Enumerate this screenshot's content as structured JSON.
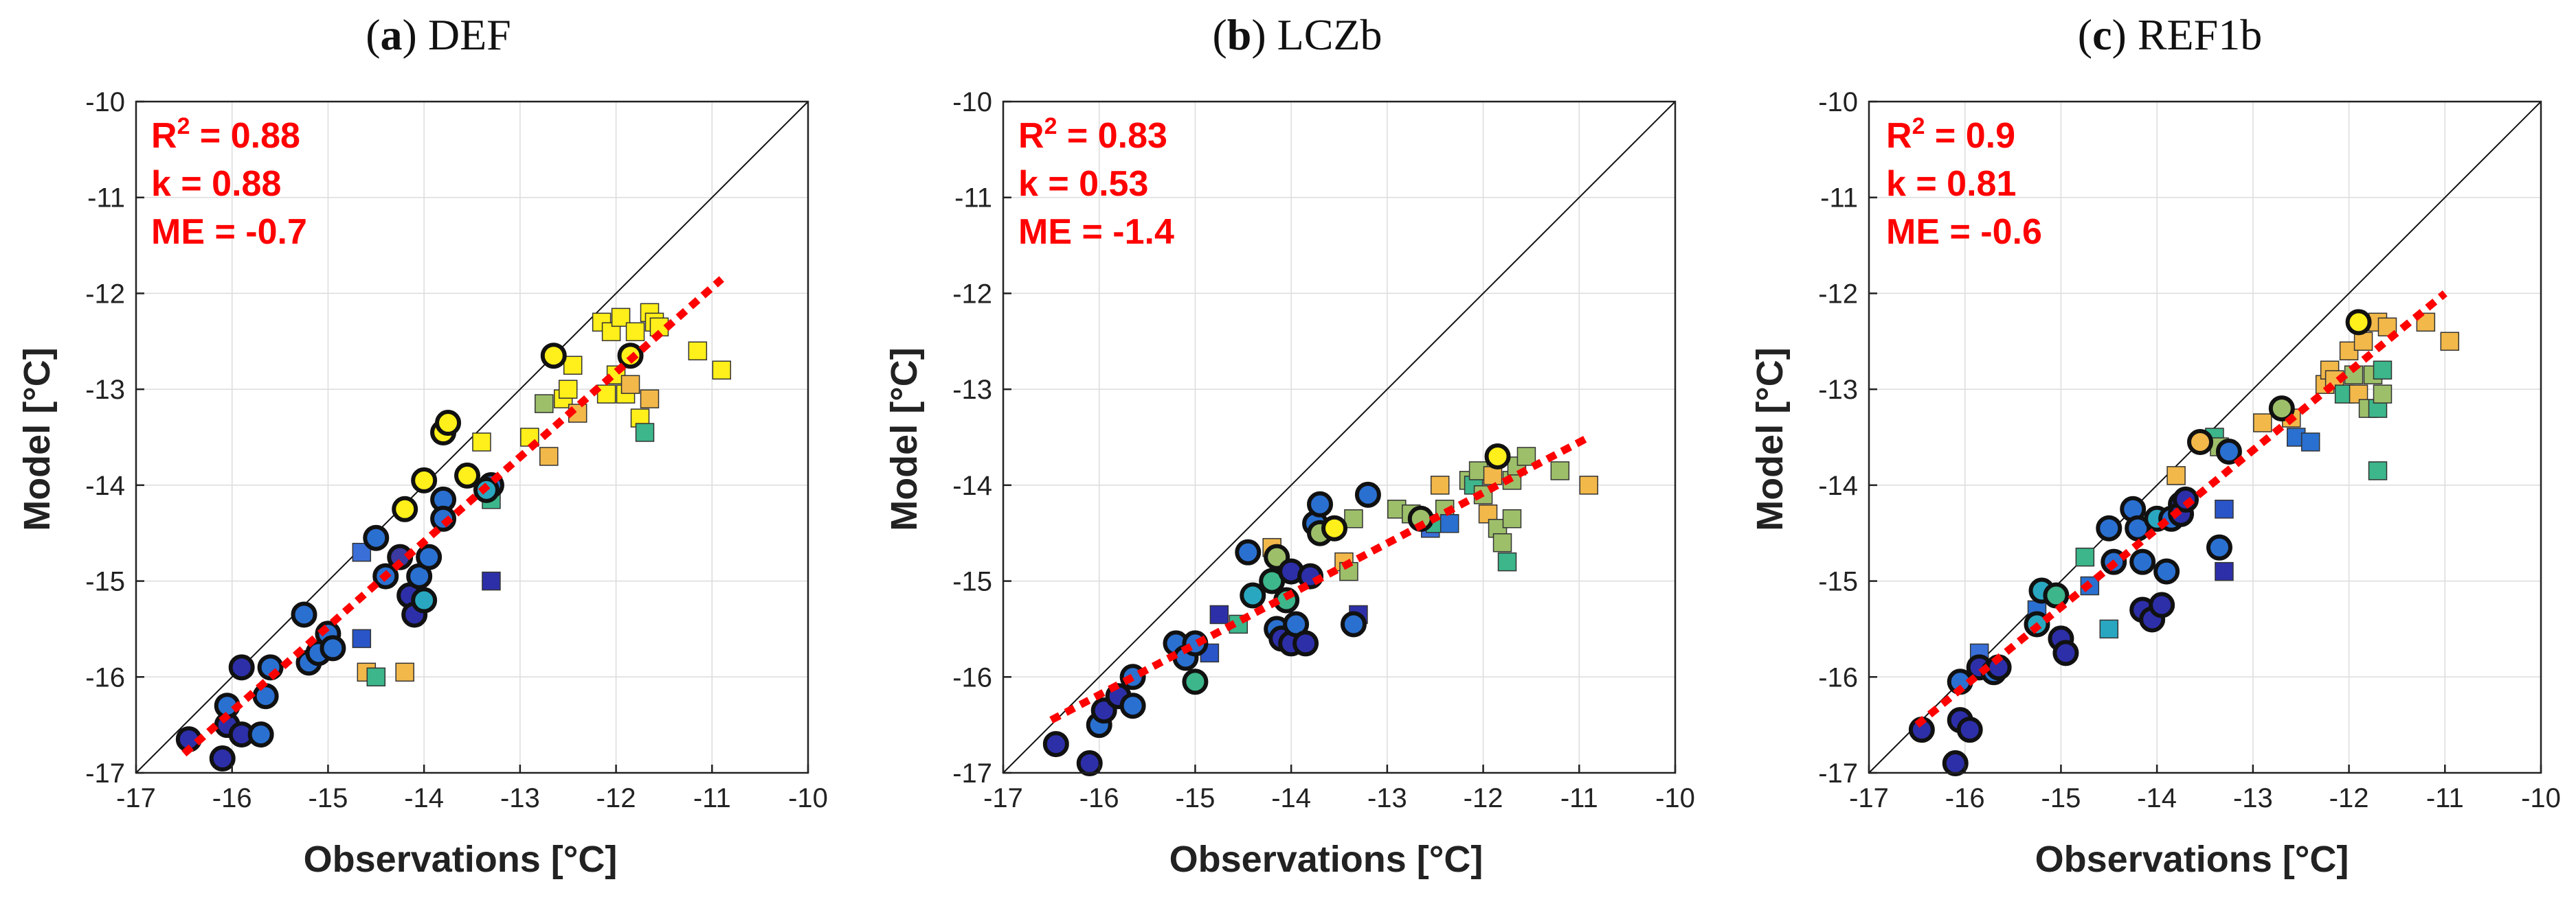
{
  "chart_data": [
    {
      "type": "scatter",
      "title_letter": "a",
      "title_name": "DEF",
      "xlabel": "Observations [°C]",
      "ylabel": "Model [°C]",
      "xlim": [
        -17,
        -10
      ],
      "ylim": [
        -17,
        -10
      ],
      "xticks": [
        "-17",
        "-16",
        "-15",
        "-14",
        "-13",
        "-12",
        "-11",
        "-10"
      ],
      "yticks": [
        "-17",
        "-16",
        "-15",
        "-14",
        "-13",
        "-12",
        "-11",
        "-10"
      ],
      "grid": true,
      "stats": {
        "r2_value": "0.88",
        "k_line": "k = 0.88",
        "me_line": "ME = -0.7"
      },
      "fit_line": {
        "x": [
          -16.5,
          -10.9
        ],
        "y": [
          -16.8,
          -11.85
        ]
      },
      "circles": [
        {
          "x": -16.45,
          "y": -16.65,
          "c": "#2d2fa8"
        },
        {
          "x": -16.1,
          "y": -16.85,
          "c": "#2d2fa8"
        },
        {
          "x": -16.05,
          "y": -16.5,
          "c": "#2d2fa8"
        },
        {
          "x": -16.05,
          "y": -16.3,
          "c": "#2a70d0"
        },
        {
          "x": -15.9,
          "y": -16.6,
          "c": "#2d2fa8"
        },
        {
          "x": -15.9,
          "y": -15.9,
          "c": "#2d2fa8"
        },
        {
          "x": -15.7,
          "y": -16.6,
          "c": "#2a70d0"
        },
        {
          "x": -15.65,
          "y": -16.2,
          "c": "#2a70d0"
        },
        {
          "x": -15.6,
          "y": -15.9,
          "c": "#2a70d0"
        },
        {
          "x": -15.25,
          "y": -15.35,
          "c": "#2a70d0"
        },
        {
          "x": -15.2,
          "y": -15.85,
          "c": "#2a70d0"
        },
        {
          "x": -15.1,
          "y": -15.75,
          "c": "#2a70d0"
        },
        {
          "x": -15.0,
          "y": -15.55,
          "c": "#2a70d0"
        },
        {
          "x": -14.95,
          "y": -15.7,
          "c": "#2a70d0"
        },
        {
          "x": -14.5,
          "y": -14.55,
          "c": "#2a70d0"
        },
        {
          "x": -14.4,
          "y": -14.95,
          "c": "#2a70d0"
        },
        {
          "x": -14.25,
          "y": -14.75,
          "c": "#3a3aa0"
        },
        {
          "x": -14.15,
          "y": -15.15,
          "c": "#2d2fa8"
        },
        {
          "x": -14.1,
          "y": -15.35,
          "c": "#2d2fa8"
        },
        {
          "x": -14.05,
          "y": -14.95,
          "c": "#2a70d0"
        },
        {
          "x": -14.0,
          "y": -15.2,
          "c": "#2aa7c0"
        },
        {
          "x": -13.95,
          "y": -14.75,
          "c": "#2a70d0"
        },
        {
          "x": -14.2,
          "y": -14.25,
          "c": "#ffef1a"
        },
        {
          "x": -14.0,
          "y": -13.95,
          "c": "#ffef1a"
        },
        {
          "x": -13.8,
          "y": -14.15,
          "c": "#2a70d0"
        },
        {
          "x": -13.8,
          "y": -14.35,
          "c": "#2a70d0"
        },
        {
          "x": -13.8,
          "y": -13.45,
          "c": "#ffef1a"
        },
        {
          "x": -13.75,
          "y": -13.35,
          "c": "#ffef1a"
        },
        {
          "x": -13.55,
          "y": -13.9,
          "c": "#ffef1a"
        },
        {
          "x": -13.3,
          "y": -14.0,
          "c": "#2a70d0"
        },
        {
          "x": -13.35,
          "y": -14.05,
          "c": "#2aa7c0"
        },
        {
          "x": -12.65,
          "y": -12.65,
          "c": "#ffef1a"
        },
        {
          "x": -11.85,
          "y": -12.65,
          "c": "#ffef1a"
        }
      ],
      "squares": [
        {
          "x": -14.65,
          "y": -14.7,
          "c": "#3a6fd8"
        },
        {
          "x": -14.65,
          "y": -15.6,
          "c": "#2a55c8"
        },
        {
          "x": -14.6,
          "y": -15.95,
          "c": "#f2b84a"
        },
        {
          "x": -14.5,
          "y": -16.0,
          "c": "#3cb68a"
        },
        {
          "x": -14.2,
          "y": -15.95,
          "c": "#f2b84a"
        },
        {
          "x": -13.3,
          "y": -15.0,
          "c": "#2d2fa8"
        },
        {
          "x": -13.4,
          "y": -13.55,
          "c": "#ffef1a"
        },
        {
          "x": -13.3,
          "y": -14.15,
          "c": "#3cb68a"
        },
        {
          "x": -12.9,
          "y": -13.5,
          "c": "#ffef1a"
        },
        {
          "x": -12.75,
          "y": -13.15,
          "c": "#9dbf6a"
        },
        {
          "x": -12.7,
          "y": -13.7,
          "c": "#f2b84a"
        },
        {
          "x": -12.55,
          "y": -13.1,
          "c": "#ffef1a"
        },
        {
          "x": -12.5,
          "y": -13.0,
          "c": "#ffef1a"
        },
        {
          "x": -12.45,
          "y": -12.75,
          "c": "#ffef1a"
        },
        {
          "x": -12.4,
          "y": -13.25,
          "c": "#f2b84a"
        },
        {
          "x": -12.15,
          "y": -12.3,
          "c": "#ffef1a"
        },
        {
          "x": -12.1,
          "y": -13.05,
          "c": "#ffef1a"
        },
        {
          "x": -12.05,
          "y": -12.4,
          "c": "#ffef1a"
        },
        {
          "x": -12.0,
          "y": -12.85,
          "c": "#ffef1a"
        },
        {
          "x": -11.95,
          "y": -12.25,
          "c": "#ffef1a"
        },
        {
          "x": -11.9,
          "y": -13.05,
          "c": "#ffef1a"
        },
        {
          "x": -11.85,
          "y": -12.95,
          "c": "#f2b84a"
        },
        {
          "x": -11.8,
          "y": -12.4,
          "c": "#ffef1a"
        },
        {
          "x": -11.75,
          "y": -13.3,
          "c": "#ffef1a"
        },
        {
          "x": -11.7,
          "y": -13.45,
          "c": "#3cb68a"
        },
        {
          "x": -11.65,
          "y": -12.2,
          "c": "#ffef1a"
        },
        {
          "x": -11.6,
          "y": -12.3,
          "c": "#ffef1a"
        },
        {
          "x": -11.65,
          "y": -13.1,
          "c": "#f2b84a"
        },
        {
          "x": -11.55,
          "y": -12.35,
          "c": "#ffef1a"
        },
        {
          "x": -11.15,
          "y": -12.6,
          "c": "#ffef1a"
        },
        {
          "x": -10.9,
          "y": -12.8,
          "c": "#ffef1a"
        }
      ]
    },
    {
      "type": "scatter",
      "title_letter": "b",
      "title_name": "LCZb",
      "xlabel": "Observations [°C]",
      "ylabel": "Model [°C]",
      "xlim": [
        -17,
        -10
      ],
      "ylim": [
        -17,
        -10
      ],
      "xticks": [
        "-17",
        "-16",
        "-15",
        "-14",
        "-13",
        "-12",
        "-11",
        "-10"
      ],
      "yticks": [
        "-17",
        "-16",
        "-15",
        "-14",
        "-13",
        "-12",
        "-11",
        "-10"
      ],
      "grid": true,
      "stats": {
        "r2_value": "0.83",
        "k_line": "k = 0.53",
        "me_line": "ME = -1.4"
      },
      "fit_line": {
        "x": [
          -16.5,
          -10.9
        ],
        "y": [
          -16.45,
          -13.5
        ]
      },
      "circles": [
        {
          "x": -16.45,
          "y": -16.7,
          "c": "#2d2fa8"
        },
        {
          "x": -16.1,
          "y": -16.9,
          "c": "#2d2fa8"
        },
        {
          "x": -16.0,
          "y": -16.5,
          "c": "#2a70d0"
        },
        {
          "x": -15.95,
          "y": -16.35,
          "c": "#2d2fa8"
        },
        {
          "x": -15.8,
          "y": -16.2,
          "c": "#2d2fa8"
        },
        {
          "x": -15.65,
          "y": -16.3,
          "c": "#2a70d0"
        },
        {
          "x": -15.65,
          "y": -16.0,
          "c": "#2a70d0"
        },
        {
          "x": -15.2,
          "y": -15.65,
          "c": "#2a70d0"
        },
        {
          "x": -15.1,
          "y": -15.8,
          "c": "#2a70d0"
        },
        {
          "x": -15.0,
          "y": -15.65,
          "c": "#2a70d0"
        },
        {
          "x": -15.0,
          "y": -16.05,
          "c": "#3cb68a"
        },
        {
          "x": -14.45,
          "y": -14.7,
          "c": "#2a70d0"
        },
        {
          "x": -14.4,
          "y": -15.15,
          "c": "#2aa7c0"
        },
        {
          "x": -14.2,
          "y": -15.0,
          "c": "#3cb68a"
        },
        {
          "x": -14.15,
          "y": -14.75,
          "c": "#9dbf6a"
        },
        {
          "x": -14.15,
          "y": -15.5,
          "c": "#2a70d0"
        },
        {
          "x": -14.1,
          "y": -15.6,
          "c": "#2d2fa8"
        },
        {
          "x": -14.05,
          "y": -15.2,
          "c": "#3cb68a"
        },
        {
          "x": -14.0,
          "y": -14.9,
          "c": "#2d2fa8"
        },
        {
          "x": -14.0,
          "y": -15.65,
          "c": "#2d2fa8"
        },
        {
          "x": -13.95,
          "y": -15.45,
          "c": "#2a70d0"
        },
        {
          "x": -13.85,
          "y": -15.65,
          "c": "#2d2fa8"
        },
        {
          "x": -13.8,
          "y": -14.95,
          "c": "#2d2fa8"
        },
        {
          "x": -13.75,
          "y": -14.4,
          "c": "#2a70d0"
        },
        {
          "x": -13.7,
          "y": -14.2,
          "c": "#2a70d0"
        },
        {
          "x": -13.7,
          "y": -14.5,
          "c": "#9dbf6a"
        },
        {
          "x": -13.55,
          "y": -14.45,
          "c": "#ffef1a"
        },
        {
          "x": -13.35,
          "y": -15.45,
          "c": "#2a70d0"
        },
        {
          "x": -13.2,
          "y": -14.1,
          "c": "#2a70d0"
        },
        {
          "x": -12.65,
          "y": -14.35,
          "c": "#9dbf6a"
        },
        {
          "x": -11.85,
          "y": -13.7,
          "c": "#ffef1a"
        }
      ],
      "squares": [
        {
          "x": -14.85,
          "y": -15.75,
          "c": "#2a55c8"
        },
        {
          "x": -14.75,
          "y": -15.35,
          "c": "#2d2fa8"
        },
        {
          "x": -14.55,
          "y": -15.45,
          "c": "#3cb68a"
        },
        {
          "x": -14.2,
          "y": -14.65,
          "c": "#f2b84a"
        },
        {
          "x": -13.45,
          "y": -14.8,
          "c": "#f2b84a"
        },
        {
          "x": -13.4,
          "y": -14.9,
          "c": "#9dbf6a"
        },
        {
          "x": -13.3,
          "y": -15.35,
          "c": "#2d2fa8"
        },
        {
          "x": -13.35,
          "y": -14.35,
          "c": "#9dbf6a"
        },
        {
          "x": -12.9,
          "y": -14.25,
          "c": "#9dbf6a"
        },
        {
          "x": -12.75,
          "y": -14.3,
          "c": "#9dbf6a"
        },
        {
          "x": -12.55,
          "y": -14.45,
          "c": "#3a6fd8"
        },
        {
          "x": -12.5,
          "y": -14.4,
          "c": "#3cb68a"
        },
        {
          "x": -12.45,
          "y": -14.0,
          "c": "#f2b84a"
        },
        {
          "x": -12.4,
          "y": -14.25,
          "c": "#9dbf6a"
        },
        {
          "x": -12.35,
          "y": -14.4,
          "c": "#2a70d0"
        },
        {
          "x": -12.15,
          "y": -13.95,
          "c": "#9dbf6a"
        },
        {
          "x": -12.1,
          "y": -14.0,
          "c": "#3cb68a"
        },
        {
          "x": -12.05,
          "y": -13.85,
          "c": "#9dbf6a"
        },
        {
          "x": -12.0,
          "y": -14.1,
          "c": "#9dbf6a"
        },
        {
          "x": -11.95,
          "y": -14.3,
          "c": "#f2b84a"
        },
        {
          "x": -11.9,
          "y": -13.9,
          "c": "#f2b84a"
        },
        {
          "x": -11.85,
          "y": -14.45,
          "c": "#9dbf6a"
        },
        {
          "x": -11.8,
          "y": -14.6,
          "c": "#9dbf6a"
        },
        {
          "x": -11.75,
          "y": -14.8,
          "c": "#3cb68a"
        },
        {
          "x": -11.7,
          "y": -14.35,
          "c": "#9dbf6a"
        },
        {
          "x": -11.7,
          "y": -13.95,
          "c": "#9dbf6a"
        },
        {
          "x": -11.65,
          "y": -13.8,
          "c": "#9dbf6a"
        },
        {
          "x": -11.55,
          "y": -13.7,
          "c": "#9dbf6a"
        },
        {
          "x": -11.2,
          "y": -13.85,
          "c": "#9dbf6a"
        },
        {
          "x": -10.9,
          "y": -14.0,
          "c": "#f2b84a"
        }
      ]
    },
    {
      "type": "scatter",
      "title_letter": "c",
      "title_name": "REF1b",
      "xlabel": "Observations [°C]",
      "ylabel": "Model [°C]",
      "xlim": [
        -17,
        -10
      ],
      "ylim": [
        -17,
        -10
      ],
      "xticks": [
        "-17",
        "-16",
        "-15",
        "-14",
        "-13",
        "-12",
        "-11",
        "-10"
      ],
      "yticks": [
        "-17",
        "-16",
        "-15",
        "-14",
        "-13",
        "-12",
        "-11",
        "-10"
      ],
      "grid": true,
      "stats": {
        "r2_value": "0.9",
        "k_line": "k = 0.81",
        "me_line": "ME = -0.6"
      },
      "fit_line": {
        "x": [
          -16.5,
          -11.0
        ],
        "y": [
          -16.5,
          -12.0
        ]
      },
      "circles": [
        {
          "x": -16.45,
          "y": -16.55,
          "c": "#2d2fa8"
        },
        {
          "x": -16.1,
          "y": -16.9,
          "c": "#2d2fa8"
        },
        {
          "x": -16.05,
          "y": -16.45,
          "c": "#2d2fa8"
        },
        {
          "x": -16.05,
          "y": -16.05,
          "c": "#2a70d0"
        },
        {
          "x": -15.95,
          "y": -16.55,
          "c": "#2d2fa8"
        },
        {
          "x": -15.85,
          "y": -15.9,
          "c": "#2d2fa8"
        },
        {
          "x": -15.7,
          "y": -15.95,
          "c": "#2a70d0"
        },
        {
          "x": -15.65,
          "y": -15.9,
          "c": "#2d2fa8"
        },
        {
          "x": -15.25,
          "y": -15.45,
          "c": "#2aa7c0"
        },
        {
          "x": -15.2,
          "y": -15.1,
          "c": "#2aa7c0"
        },
        {
          "x": -15.05,
          "y": -15.15,
          "c": "#3cb68a"
        },
        {
          "x": -15.0,
          "y": -15.6,
          "c": "#2d2fa8"
        },
        {
          "x": -14.95,
          "y": -15.75,
          "c": "#2d2fa8"
        },
        {
          "x": -14.5,
          "y": -14.45,
          "c": "#2a70d0"
        },
        {
          "x": -14.45,
          "y": -14.8,
          "c": "#2a70d0"
        },
        {
          "x": -14.25,
          "y": -14.25,
          "c": "#2a70d0"
        },
        {
          "x": -14.2,
          "y": -14.45,
          "c": "#2a70d0"
        },
        {
          "x": -14.15,
          "y": -14.8,
          "c": "#2a70d0"
        },
        {
          "x": -14.15,
          "y": -15.3,
          "c": "#2d2fa8"
        },
        {
          "x": -14.05,
          "y": -15.4,
          "c": "#2d2fa8"
        },
        {
          "x": -14.0,
          "y": -14.35,
          "c": "#2aa7c0"
        },
        {
          "x": -13.95,
          "y": -15.25,
          "c": "#2d2fa8"
        },
        {
          "x": -13.9,
          "y": -14.9,
          "c": "#2a70d0"
        },
        {
          "x": -13.85,
          "y": -14.35,
          "c": "#2a70d0"
        },
        {
          "x": -13.75,
          "y": -14.2,
          "c": "#2d2fa8"
        },
        {
          "x": -13.75,
          "y": -14.3,
          "c": "#2d2fa8"
        },
        {
          "x": -13.7,
          "y": -14.15,
          "c": "#2d2fa8"
        },
        {
          "x": -13.55,
          "y": -13.55,
          "c": "#f2b84a"
        },
        {
          "x": -13.35,
          "y": -14.65,
          "c": "#2a70d0"
        },
        {
          "x": -13.25,
          "y": -13.65,
          "c": "#2a70d0"
        },
        {
          "x": -12.7,
          "y": -13.2,
          "c": "#9dbf6a"
        },
        {
          "x": -11.9,
          "y": -12.3,
          "c": "#ffef1a"
        }
      ],
      "squares": [
        {
          "x": -15.85,
          "y": -15.75,
          "c": "#3a6fd8"
        },
        {
          "x": -15.25,
          "y": -15.3,
          "c": "#2a70d0"
        },
        {
          "x": -14.75,
          "y": -14.75,
          "c": "#3cb68a"
        },
        {
          "x": -14.7,
          "y": -15.05,
          "c": "#2a70d0"
        },
        {
          "x": -14.5,
          "y": -15.5,
          "c": "#2aa7c0"
        },
        {
          "x": -13.8,
          "y": -13.9,
          "c": "#f2b84a"
        },
        {
          "x": -13.4,
          "y": -13.5,
          "c": "#3cb68a"
        },
        {
          "x": -13.35,
          "y": -13.6,
          "c": "#9dbf6a"
        },
        {
          "x": -13.3,
          "y": -14.25,
          "c": "#2a55c8"
        },
        {
          "x": -13.3,
          "y": -14.9,
          "c": "#2d2fa8"
        },
        {
          "x": -12.9,
          "y": -13.35,
          "c": "#f2b84a"
        },
        {
          "x": -12.6,
          "y": -13.3,
          "c": "#f2b84a"
        },
        {
          "x": -12.55,
          "y": -13.5,
          "c": "#2a70d0"
        },
        {
          "x": -12.4,
          "y": -13.55,
          "c": "#2a70d0"
        },
        {
          "x": -12.25,
          "y": -12.95,
          "c": "#f2b84a"
        },
        {
          "x": -12.2,
          "y": -12.8,
          "c": "#f2b84a"
        },
        {
          "x": -12.15,
          "y": -12.9,
          "c": "#f2b84a"
        },
        {
          "x": -12.05,
          "y": -13.05,
          "c": "#3cb68a"
        },
        {
          "x": -12.0,
          "y": -12.6,
          "c": "#f2b84a"
        },
        {
          "x": -11.95,
          "y": -12.85,
          "c": "#9dbf6a"
        },
        {
          "x": -11.9,
          "y": -13.05,
          "c": "#f2b84a"
        },
        {
          "x": -11.85,
          "y": -12.5,
          "c": "#f2b84a"
        },
        {
          "x": -11.8,
          "y": -13.2,
          "c": "#9dbf6a"
        },
        {
          "x": -11.75,
          "y": -12.85,
          "c": "#9dbf6a"
        },
        {
          "x": -11.7,
          "y": -12.3,
          "c": "#f2b84a"
        },
        {
          "x": -11.7,
          "y": -13.2,
          "c": "#3cb68a"
        },
        {
          "x": -11.65,
          "y": -12.8,
          "c": "#3cb68a"
        },
        {
          "x": -11.65,
          "y": -13.05,
          "c": "#9dbf6a"
        },
        {
          "x": -11.6,
          "y": -12.35,
          "c": "#f2b84a"
        },
        {
          "x": -11.7,
          "y": -13.85,
          "c": "#3cb68a"
        },
        {
          "x": -11.2,
          "y": -12.3,
          "c": "#f2b84a"
        },
        {
          "x": -10.95,
          "y": -12.5,
          "c": "#f2b84a"
        }
      ]
    }
  ]
}
